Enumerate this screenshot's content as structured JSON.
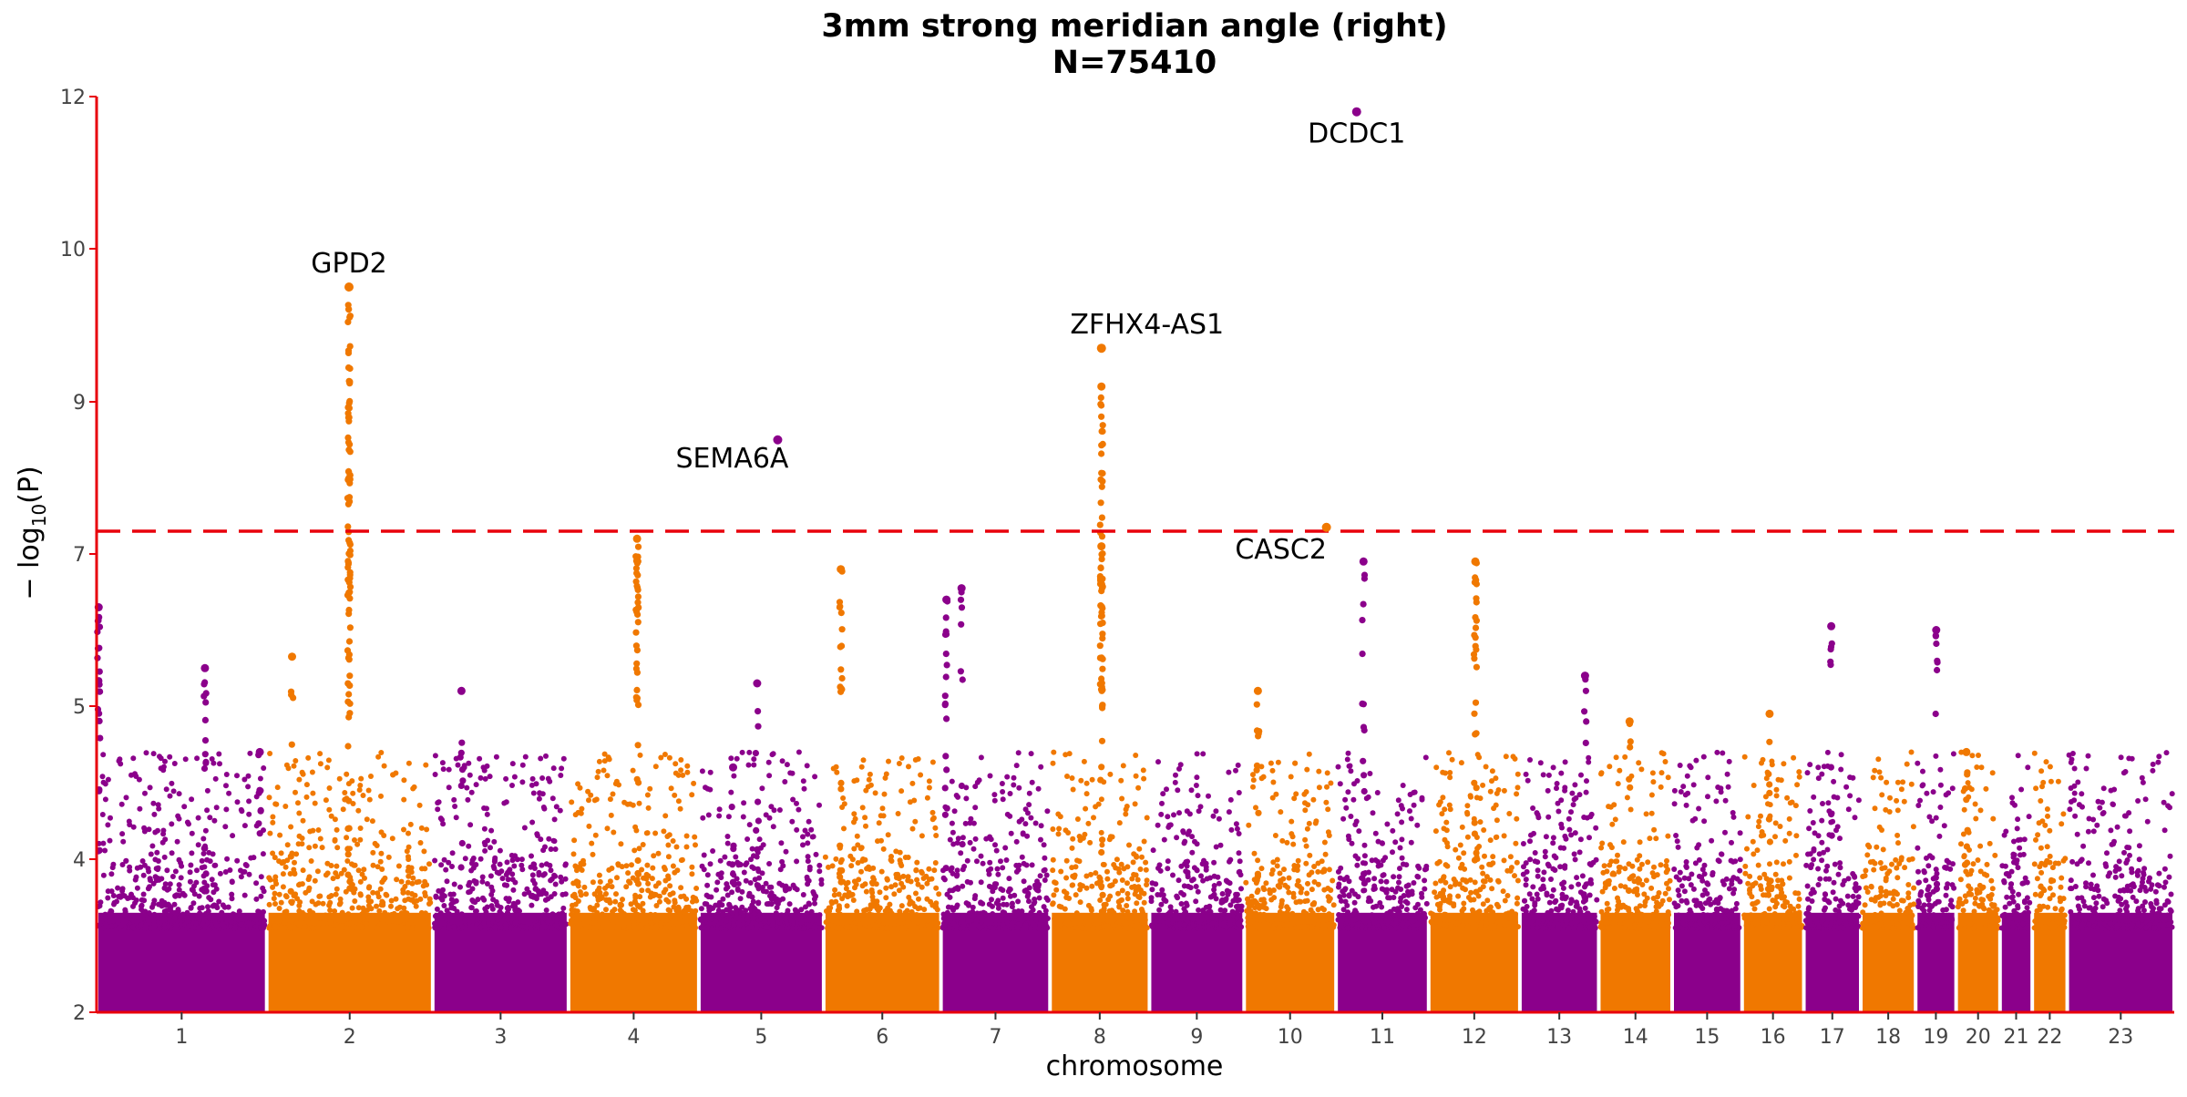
{
  "chart_data": {
    "type": "scatter",
    "title": "3mm strong meridian angle (right)",
    "subtitle": "N=75410",
    "xlabel": "chromosome",
    "ylabel": "− log10(P)",
    "ylim": [
      2,
      12
    ],
    "y_ticks": [
      {
        "value": 2,
        "label": "2"
      },
      {
        "value": 4,
        "label": "4"
      },
      {
        "value": 5,
        "label": "5"
      },
      {
        "value": 7,
        "label": "7"
      },
      {
        "value": 9,
        "label": "9"
      },
      {
        "value": 10,
        "label": "10"
      },
      {
        "value": 12,
        "label": "12"
      }
    ],
    "significance_threshold": 7.3,
    "colors": {
      "odd": "#8b008b",
      "even": "#f07800",
      "axis": "#e8000b",
      "threshold": "#e8000b"
    },
    "chromosomes": [
      {
        "label": "1",
        "start": 0,
        "end": 248
      },
      {
        "label": "2",
        "start": 248,
        "end": 490
      },
      {
        "label": "3",
        "start": 490,
        "end": 688
      },
      {
        "label": "4",
        "start": 688,
        "end": 878
      },
      {
        "label": "5",
        "start": 878,
        "end": 1060
      },
      {
        "label": "6",
        "start": 1060,
        "end": 1231
      },
      {
        "label": "7",
        "start": 1231,
        "end": 1390
      },
      {
        "label": "8",
        "start": 1390,
        "end": 1535
      },
      {
        "label": "9",
        "start": 1535,
        "end": 1673
      },
      {
        "label": "10",
        "start": 1673,
        "end": 1807
      },
      {
        "label": "11",
        "start": 1807,
        "end": 1942
      },
      {
        "label": "12",
        "start": 1942,
        "end": 2075
      },
      {
        "label": "13",
        "start": 2075,
        "end": 2190
      },
      {
        "label": "14",
        "start": 2190,
        "end": 2297
      },
      {
        "label": "15",
        "start": 2297,
        "end": 2399
      },
      {
        "label": "16",
        "start": 2399,
        "end": 2489
      },
      {
        "label": "17",
        "start": 2489,
        "end": 2572
      },
      {
        "label": "18",
        "start": 2572,
        "end": 2652
      },
      {
        "label": "19",
        "start": 2652,
        "end": 2711
      },
      {
        "label": "20",
        "start": 2711,
        "end": 2775
      },
      {
        "label": "21",
        "start": 2775,
        "end": 2822
      },
      {
        "label": "22",
        "start": 2822,
        "end": 2873
      },
      {
        "label": "23",
        "start": 2873,
        "end": 3029
      }
    ],
    "peaks": [
      {
        "chr": 1,
        "pos": 3,
        "y": 6.3,
        "n": 22
      },
      {
        "chr": 1,
        "pos": 158,
        "y": 5.5,
        "n": 18
      },
      {
        "chr": 1,
        "pos": 238,
        "y": 4.7,
        "n": 8
      },
      {
        "chr": 2,
        "pos": 120,
        "y": 9.75,
        "n": 90
      },
      {
        "chr": 2,
        "pos": 37,
        "y": 5.65,
        "n": 6
      },
      {
        "chr": 3,
        "pos": 42,
        "y": 5.2,
        "n": 8
      },
      {
        "chr": 4,
        "pos": 100,
        "y": 7.2,
        "n": 40
      },
      {
        "chr": 5,
        "pos": 85,
        "y": 5.3,
        "n": 8
      },
      {
        "chr": 5,
        "pos": 50,
        "y": 4.6,
        "n": 6
      },
      {
        "chr": 6,
        "pos": 25,
        "y": 6.8,
        "n": 20
      },
      {
        "chr": 7,
        "pos": 8,
        "y": 6.4,
        "n": 18
      },
      {
        "chr": 7,
        "pos": 30,
        "y": 6.55,
        "n": 8
      },
      {
        "chr": 8,
        "pos": 75,
        "y": 9.1,
        "n": 40
      },
      {
        "chr": 8,
        "pos": 75,
        "y": 7.1,
        "n": 30
      },
      {
        "chr": 10,
        "pos": 20,
        "y": 5.2,
        "n": 10
      },
      {
        "chr": 11,
        "pos": 40,
        "y": 6.9,
        "n": 14
      },
      {
        "chr": 12,
        "pos": 68,
        "y": 6.9,
        "n": 28
      },
      {
        "chr": 13,
        "pos": 95,
        "y": 5.4,
        "n": 6
      },
      {
        "chr": 14,
        "pos": 45,
        "y": 4.9,
        "n": 6
      },
      {
        "chr": 16,
        "pos": 40,
        "y": 4.95,
        "n": 10
      },
      {
        "chr": 17,
        "pos": 40,
        "y": 6.05,
        "n": 8
      },
      {
        "chr": 19,
        "pos": 30,
        "y": 6.0,
        "n": 10
      },
      {
        "chr": 20,
        "pos": 15,
        "y": 4.7,
        "n": 8
      }
    ],
    "top_hits": [
      {
        "gene": "DCDC1",
        "chr": 11,
        "pos": 30,
        "y": 11.8
      },
      {
        "gene": "GPD2",
        "chr": 2,
        "pos": 120,
        "y": 9.75
      },
      {
        "gene": "ZFHX4-AS1",
        "chr": 8,
        "pos": 75,
        "y": 9.35
      },
      {
        "gene": "SEMA6A",
        "chr": 5,
        "pos": 115,
        "y": 8.5
      },
      {
        "gene": "CASC2",
        "chr": 10,
        "pos": 120,
        "y": 7.35
      }
    ]
  }
}
